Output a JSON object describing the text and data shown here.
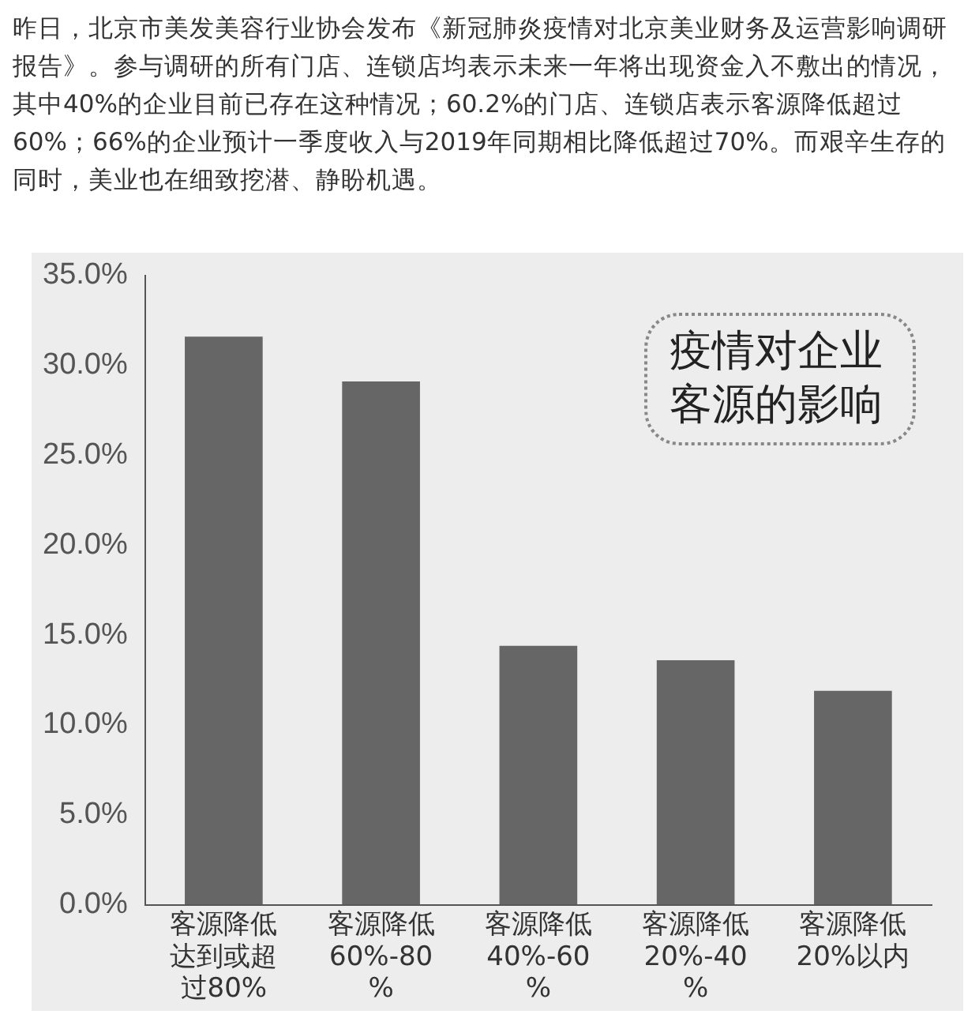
{
  "chart_data": {
    "type": "bar",
    "title": "疫情对企业客源的影响",
    "annotations": [
      "昨日，北京市美发美容行业协会发布《新冠肺炎疫情对北京美业财务及运营影响调研报告》。参与调研的所有门店、连锁店均表示未来一年将出现资金入不敷出的情况，其中40%的企业目前已存在这种情况；60.2%的门店、连锁店表示客源降低超过60%；66%的企业预计一季度收入与2019年同期相比降低超过70%。而艰辛生存的同时，美业也在细致挖潜、静盼机遇。"
    ],
    "categories": [
      "客源降低达到或超过80%",
      "客源降低60%-80%",
      "客源降低40%-60%",
      "客源降低20%-40%",
      "客源降低20%以内"
    ],
    "values": [
      31.6,
      29.1,
      14.4,
      13.6,
      11.9
    ],
    "color": "#666666",
    "ylim": [
      0,
      35
    ],
    "yticks": [
      {
        "value": 0,
        "label": "0.0%"
      },
      {
        "value": 5,
        "label": "5.0%"
      },
      {
        "value": 10,
        "label": "10.0%"
      },
      {
        "value": 15,
        "label": "15.0%"
      },
      {
        "value": 20,
        "label": "20.0%"
      },
      {
        "value": 25,
        "label": "25.0%"
      },
      {
        "value": 30,
        "label": "30.0%"
      },
      {
        "value": 35,
        "label": "35.0%"
      }
    ],
    "grid": false,
    "legend": false
  }
}
